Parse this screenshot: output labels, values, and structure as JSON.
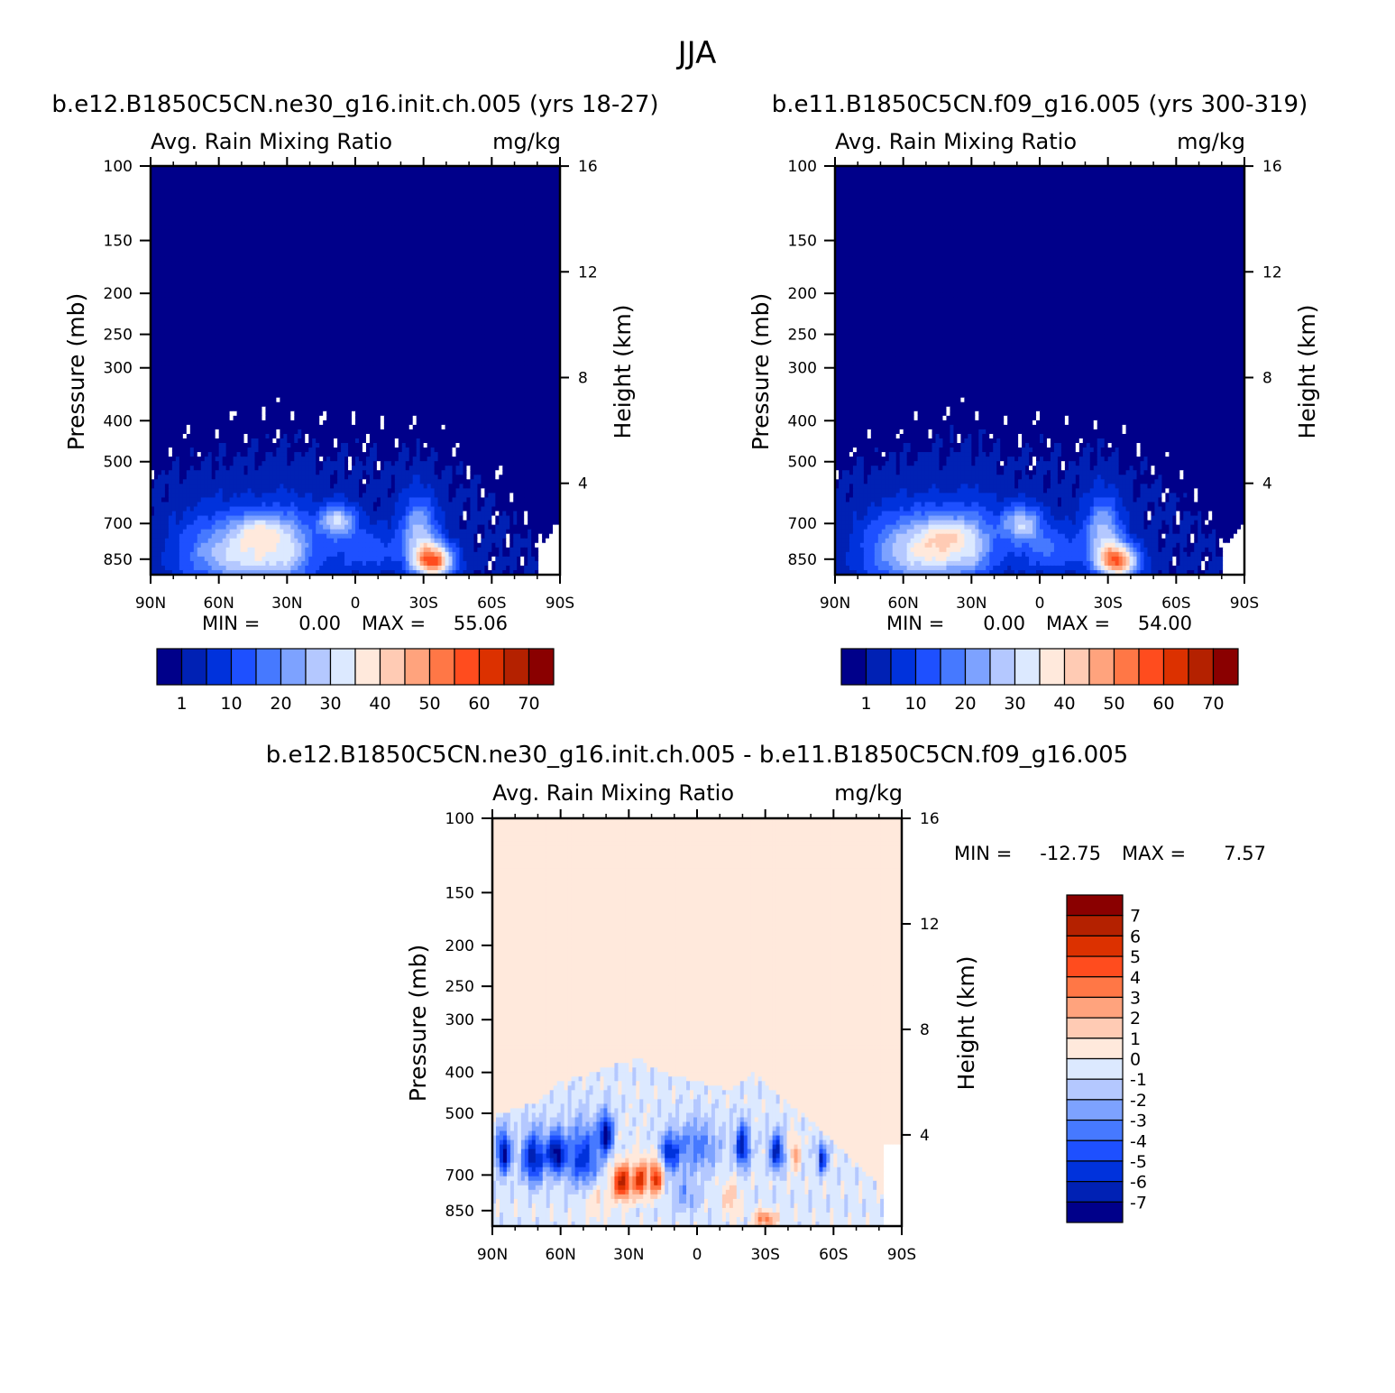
{
  "figure_title": "JJA",
  "colors": {
    "panel_palette": [
      "#00008a",
      "#0021b4",
      "#0032dc",
      "#1e50ff",
      "#4679ff",
      "#7da2ff",
      "#b4c8ff",
      "#dce9ff",
      "#ffe9dc",
      "#ffcbb4",
      "#ffa37d",
      "#ff7746",
      "#ff4c1e",
      "#dc3100",
      "#b42100",
      "#8a0000"
    ],
    "diff_palette": [
      "#00008a",
      "#0021b4",
      "#0032dc",
      "#1e50ff",
      "#4679ff",
      "#7da2ff",
      "#b4c8ff",
      "#dce9ff",
      "#ffe9dc",
      "#ffcbb4",
      "#ffa37d",
      "#ff7746",
      "#ff4c1e",
      "#dc3100",
      "#b42100",
      "#8a0000"
    ]
  },
  "chart_data": [
    {
      "type": "heatmap",
      "id": "panel-1",
      "title": "b.e12.B1850C5CN.ne30_g16.init.ch.005 (yrs 18-27)",
      "subtitle_left": "Avg. Rain Mixing Ratio",
      "subtitle_right": "mg/kg",
      "ylabel": "Pressure (mb)",
      "ylabel_right": "Height (km)",
      "x_ticks": [
        "90N",
        "60N",
        "30N",
        "0",
        "30S",
        "60S",
        "90S"
      ],
      "y_ticks": [
        "100",
        "150",
        "200",
        "250",
        "300",
        "400",
        "500",
        "700",
        "850"
      ],
      "y_ticks_right": [
        "16",
        "12",
        "8",
        "4"
      ],
      "ylim": [
        100,
        925
      ],
      "min_label": "MIN =",
      "min_value": "0.00",
      "max_label": "MAX =",
      "max_value": "55.06",
      "colorbar_labels": [
        "1",
        "10",
        "20",
        "30",
        "40",
        "50",
        "60",
        "70"
      ],
      "blobs": [
        {
          "lat": 45,
          "p": 820,
          "amp": 34,
          "slat": 24,
          "sp": 150
        },
        {
          "lat": 42,
          "p": 720,
          "amp": 14,
          "slat": 10,
          "sp": 55
        },
        {
          "lat": 8,
          "p": 690,
          "amp": 28,
          "slat": 8,
          "sp": 60
        },
        {
          "lat": -34,
          "p": 860,
          "amp": 54,
          "slat": 9,
          "sp": 80
        },
        {
          "lat": -28,
          "p": 720,
          "amp": 24,
          "slat": 8,
          "sp": 120
        },
        {
          "lat": -5,
          "p": 810,
          "amp": 12,
          "slat": 16,
          "sp": 100
        },
        {
          "lat": 28,
          "p": 780,
          "amp": 10,
          "slat": 8,
          "sp": 160
        },
        {
          "lat": 70,
          "p": 820,
          "amp": 5,
          "slat": 14,
          "sp": 180
        }
      ],
      "upper_edge": [
        [
          90,
          560
        ],
        [
          75,
          530
        ],
        [
          60,
          510
        ],
        [
          45,
          490
        ],
        [
          30,
          470
        ],
        [
          15,
          490
        ],
        [
          0,
          490
        ],
        [
          -15,
          500
        ],
        [
          -25,
          490
        ],
        [
          -35,
          520
        ],
        [
          -50,
          560
        ],
        [
          -65,
          640
        ],
        [
          -78,
          800
        ],
        [
          -90,
          840
        ]
      ]
    },
    {
      "type": "heatmap",
      "id": "panel-2",
      "title": "b.e11.B1850C5CN.f09_g16.005 (yrs 300-319)",
      "subtitle_left": "Avg. Rain Mixing Ratio",
      "subtitle_right": "mg/kg",
      "ylabel": "Pressure (mb)",
      "ylabel_right": "Height (km)",
      "x_ticks": [
        "90N",
        "60N",
        "30N",
        "0",
        "30S",
        "60S",
        "90S"
      ],
      "y_ticks": [
        "100",
        "150",
        "200",
        "250",
        "300",
        "400",
        "500",
        "700",
        "850"
      ],
      "y_ticks_right": [
        "16",
        "12",
        "8",
        "4"
      ],
      "ylim": [
        100,
        925
      ],
      "min_label": "MIN =",
      "min_value": "0.00",
      "max_label": "MAX =",
      "max_value": "54.00",
      "colorbar_labels": [
        "1",
        "10",
        "20",
        "30",
        "40",
        "50",
        "60",
        "70"
      ],
      "blobs": [
        {
          "lat": 47,
          "p": 810,
          "amp": 36,
          "slat": 22,
          "sp": 150
        },
        {
          "lat": 40,
          "p": 740,
          "amp": 12,
          "slat": 10,
          "sp": 60
        },
        {
          "lat": 8,
          "p": 700,
          "amp": 26,
          "slat": 9,
          "sp": 70
        },
        {
          "lat": -34,
          "p": 860,
          "amp": 52,
          "slat": 9,
          "sp": 80
        },
        {
          "lat": -28,
          "p": 720,
          "amp": 24,
          "slat": 8,
          "sp": 120
        },
        {
          "lat": -5,
          "p": 810,
          "amp": 14,
          "slat": 16,
          "sp": 100
        },
        {
          "lat": 28,
          "p": 770,
          "amp": 10,
          "slat": 8,
          "sp": 160
        },
        {
          "lat": 70,
          "p": 820,
          "amp": 6,
          "slat": 14,
          "sp": 180
        }
      ],
      "upper_edge": [
        [
          90,
          560
        ],
        [
          75,
          530
        ],
        [
          60,
          510
        ],
        [
          45,
          470
        ],
        [
          30,
          470
        ],
        [
          15,
          490
        ],
        [
          0,
          490
        ],
        [
          -15,
          500
        ],
        [
          -25,
          490
        ],
        [
          -35,
          520
        ],
        [
          -50,
          560
        ],
        [
          -65,
          640
        ],
        [
          -78,
          800
        ],
        [
          -90,
          840
        ]
      ]
    },
    {
      "type": "heatmap",
      "id": "panel-diff",
      "title": "b.e12.B1850C5CN.ne30_g16.init.ch.005 - b.e11.B1850C5CN.f09_g16.005",
      "subtitle_left": "Avg. Rain Mixing Ratio",
      "subtitle_right": "mg/kg",
      "ylabel": "Pressure (mb)",
      "ylabel_right": "Height (km)",
      "x_ticks": [
        "90N",
        "60N",
        "30N",
        "0",
        "30S",
        "60S",
        "90S"
      ],
      "y_ticks": [
        "100",
        "150",
        "200",
        "250",
        "300",
        "400",
        "500",
        "700",
        "850"
      ],
      "y_ticks_right": [
        "16",
        "12",
        "8",
        "4"
      ],
      "ylim": [
        100,
        925
      ],
      "min_label": "MIN =",
      "min_value": "-12.75",
      "max_label": "MAX =",
      "max_value": "7.57",
      "colorbar_labels": [
        "7",
        "6",
        "5",
        "4",
        "3",
        "2",
        "1",
        "0",
        "-1",
        "-2",
        "-3",
        "-4",
        "-5",
        "-6",
        "-7"
      ],
      "blobs": [
        {
          "lat": 85,
          "p": 620,
          "amp": -7,
          "slat": 3,
          "sp": 70
        },
        {
          "lat": 72,
          "p": 640,
          "amp": -6,
          "slat": 5,
          "sp": 90
        },
        {
          "lat": 62,
          "p": 620,
          "amp": -7,
          "slat": 4,
          "sp": 70
        },
        {
          "lat": 50,
          "p": 640,
          "amp": -5,
          "slat": 7,
          "sp": 110
        },
        {
          "lat": 40,
          "p": 560,
          "amp": -7,
          "slat": 3,
          "sp": 60
        },
        {
          "lat": 33,
          "p": 730,
          "amp": 7,
          "slat": 4,
          "sp": 70
        },
        {
          "lat": 25,
          "p": 720,
          "amp": 6,
          "slat": 3,
          "sp": 70
        },
        {
          "lat": 18,
          "p": 710,
          "amp": 6,
          "slat": 3,
          "sp": 70
        },
        {
          "lat": 12,
          "p": 620,
          "amp": -5,
          "slat": 4,
          "sp": 60
        },
        {
          "lat": 0,
          "p": 600,
          "amp": -3,
          "slat": 10,
          "sp": 80
        },
        {
          "lat": -20,
          "p": 600,
          "amp": -6,
          "slat": 3,
          "sp": 70
        },
        {
          "lat": -35,
          "p": 620,
          "amp": -6,
          "slat": 3,
          "sp": 60
        },
        {
          "lat": -43,
          "p": 620,
          "amp": 3,
          "slat": 2,
          "sp": 60
        },
        {
          "lat": -55,
          "p": 640,
          "amp": -6,
          "slat": 2,
          "sp": 50
        },
        {
          "lat": -30,
          "p": 890,
          "amp": 4,
          "slat": 5,
          "sp": 40
        },
        {
          "lat": 45,
          "p": 800,
          "amp": 1.5,
          "slat": 6,
          "sp": 100
        },
        {
          "lat": 5,
          "p": 780,
          "amp": -2,
          "slat": 6,
          "sp": 80
        },
        {
          "lat": -15,
          "p": 800,
          "amp": 2,
          "slat": 4,
          "sp": 80
        }
      ],
      "mask_edge": [
        [
          90,
          500
        ],
        [
          80,
          490
        ],
        [
          70,
          470
        ],
        [
          60,
          420
        ],
        [
          45,
          400
        ],
        [
          35,
          380
        ],
        [
          25,
          370
        ],
        [
          15,
          400
        ],
        [
          0,
          420
        ],
        [
          -15,
          440
        ],
        [
          -25,
          400
        ],
        [
          -35,
          450
        ],
        [
          -50,
          520
        ],
        [
          -65,
          620
        ],
        [
          -78,
          720
        ],
        [
          -88,
          900
        ],
        [
          -90,
          925
        ]
      ]
    }
  ]
}
